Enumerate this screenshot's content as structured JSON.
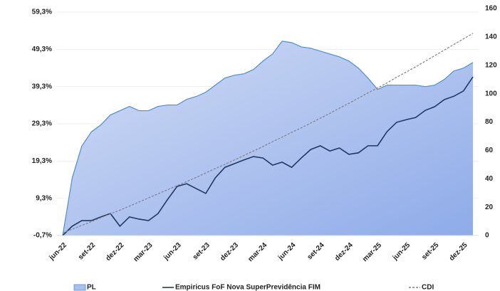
{
  "chart_data": {
    "type": "combo",
    "categories": [
      "jun-22",
      null,
      null,
      "set-22",
      null,
      null,
      "dez-22",
      null,
      null,
      "mar-23",
      null,
      null,
      "jun-23",
      null,
      null,
      "set-23",
      null,
      null,
      "dez-23",
      null,
      null,
      "mar-24",
      null,
      null,
      "jun-24",
      null,
      null,
      "set-24",
      null,
      null,
      "dez-24",
      null,
      null,
      "mar-25",
      null,
      null,
      "jun-25",
      null,
      null,
      "set-25",
      null,
      null,
      "dez-25",
      null
    ],
    "ylim": [
      -0.7,
      59.3
    ],
    "yticks": [
      {
        "value": -0.7,
        "label": "-0,7%"
      },
      {
        "value": 9.3,
        "label": "9,3%"
      },
      {
        "value": 19.3,
        "label": "19,3%"
      },
      {
        "value": 29.3,
        "label": "29,3%"
      },
      {
        "value": 39.3,
        "label": "39,3%"
      },
      {
        "value": 49.3,
        "label": "49,3%"
      },
      {
        "value": 59.3,
        "label": "59,3%"
      }
    ],
    "y2lim": [
      0,
      160
    ],
    "y2ticks": [
      0,
      20,
      40,
      60,
      80,
      100,
      120,
      140,
      160
    ],
    "series": [
      {
        "name": "PL",
        "type": "area",
        "axis": "y2",
        "color": "#4a8fd8",
        "values": [
          0,
          40.6,
          63,
          73,
          78,
          85,
          88,
          91,
          88,
          88,
          91,
          92,
          92,
          96,
          98,
          101,
          106,
          111,
          113,
          114,
          117,
          123,
          128,
          137,
          136,
          133,
          132,
          130,
          128,
          126,
          123,
          118,
          111,
          103,
          106,
          106,
          106,
          106,
          105,
          106,
          110,
          116,
          118,
          122
        ]
      },
      {
        "name": "Empiricus FoF Nova SuperPrevidência FIM",
        "type": "line",
        "color": "#1f3864",
        "values": [
          -0.7,
          1.8,
          3.3,
          3.3,
          4.3,
          5.2,
          1.8,
          4.3,
          3.7,
          3.3,
          5.2,
          9.0,
          12.5,
          13.2,
          11.9,
          10.6,
          14.8,
          17.6,
          18.6,
          19.6,
          20.5,
          20.1,
          18.2,
          19.0,
          17.6,
          20.1,
          22.4,
          23.4,
          22.0,
          22.8,
          21.1,
          21.5,
          23.4,
          23.4,
          27.2,
          29.7,
          30.4,
          31.0,
          32.9,
          33.9,
          35.8,
          36.7,
          38.1,
          41.9
        ]
      },
      {
        "name": "CDI",
        "type": "line",
        "dashed": true,
        "color": "#808080",
        "values": [
          0,
          1.0,
          2.0,
          3.0,
          4.1,
          5.1,
          6.1,
          7.2,
          8.3,
          9.4,
          10.5,
          11.6,
          12.7,
          13.8,
          14.9,
          16.1,
          17.3,
          18.4,
          19.6,
          20.8,
          22.0,
          23.2,
          24.5,
          25.7,
          27.0,
          28.2,
          29.5,
          30.8,
          32.1,
          33.5,
          34.8,
          36.2,
          37.6,
          38.9,
          40.3,
          41.8,
          43.2,
          44.6,
          46.1,
          47.6,
          49.1,
          50.6,
          52.1,
          53.6
        ]
      }
    ]
  }
}
